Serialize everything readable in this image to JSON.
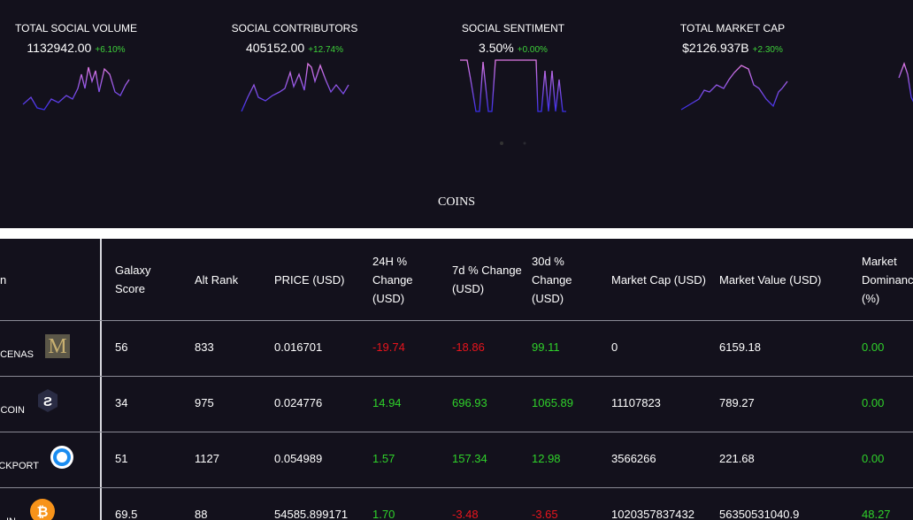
{
  "stats": [
    {
      "label": "TOTAL SOCIAL VOLUME",
      "value": "1132942.00",
      "change": "+6.10%"
    },
    {
      "label": "SOCIAL CONTRIBUTORS",
      "value": "405152.00",
      "change": "+12.74%"
    },
    {
      "label": "SOCIAL SENTIMENT",
      "value": "3.50%",
      "change": "+0.00%"
    },
    {
      "label": "TOTAL MARKET CAP",
      "value": "$2126.937B",
      "change": "+2.30%"
    }
  ],
  "section_title": "COINS",
  "table": {
    "headers": [
      "n",
      "Galaxy Score",
      "Alt Rank",
      "PRICE (USD)",
      "24H % Change (USD)",
      "7d % Change (USD)",
      "30d % Change (USD)",
      "Market Cap (USD)",
      "Market Value (USD)",
      "Market Dominance (%)"
    ],
    "rows": [
      [
        "CENAS",
        "56",
        "833",
        "0.016701",
        "-19.74",
        "-18.86",
        "99.11",
        "0",
        "6159.18",
        "0.00"
      ],
      [
        "COIN",
        "34",
        "975",
        "0.024776",
        "14.94",
        "696.93",
        "1065.89",
        "11107823",
        "789.27",
        "0.00"
      ],
      [
        "CKPORT",
        "51",
        "1127",
        "0.054989",
        "1.57",
        "157.34",
        "12.98",
        "3566266",
        "221.68",
        "0.00"
      ],
      [
        "IN",
        "69.5",
        "88",
        "54585.899171",
        "1.70",
        "-3.48",
        "-3.65",
        "1020357837432",
        "56350531040.9",
        "48.27"
      ]
    ]
  }
}
